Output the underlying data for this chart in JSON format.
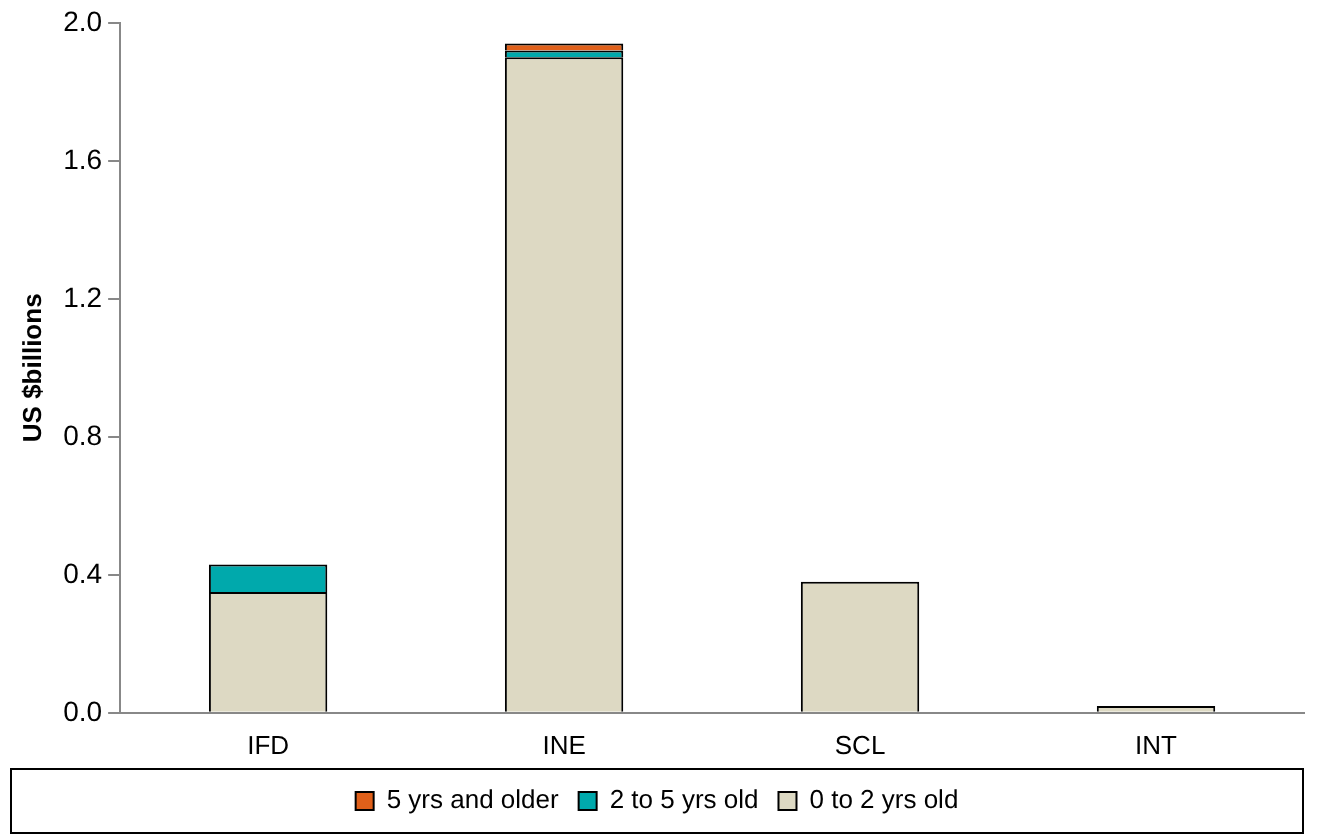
{
  "chart_data": {
    "type": "bar",
    "ylabel": "US $billions",
    "categories": [
      "IFD",
      "INE",
      "SCL",
      "INT"
    ],
    "stacked": true,
    "series": [
      {
        "name": "0 to 2 yrs old",
        "color": "#ddd9c3",
        "values": [
          0.35,
          1.9,
          0.38,
          0.02
        ]
      },
      {
        "name": "2 to 5 yrs old",
        "color": "#00a9ac",
        "values": [
          0.08,
          0.02,
          0,
          0
        ]
      },
      {
        "name": "5 yrs and older",
        "color": "#e0601a",
        "values": [
          0,
          0.02,
          0,
          0
        ]
      }
    ],
    "ylim": [
      0,
      2.0
    ],
    "yticks": [
      {
        "value": 0,
        "label": "0.0"
      },
      {
        "value": 0.4,
        "label": "0.4"
      },
      {
        "value": 0.8,
        "label": "0.8"
      },
      {
        "value": 1.2,
        "label": "1.2"
      },
      {
        "value": 1.6,
        "label": "1.6"
      },
      {
        "value": 2.0,
        "label": "2.0"
      }
    ],
    "grid": false,
    "legend": "bottom"
  }
}
